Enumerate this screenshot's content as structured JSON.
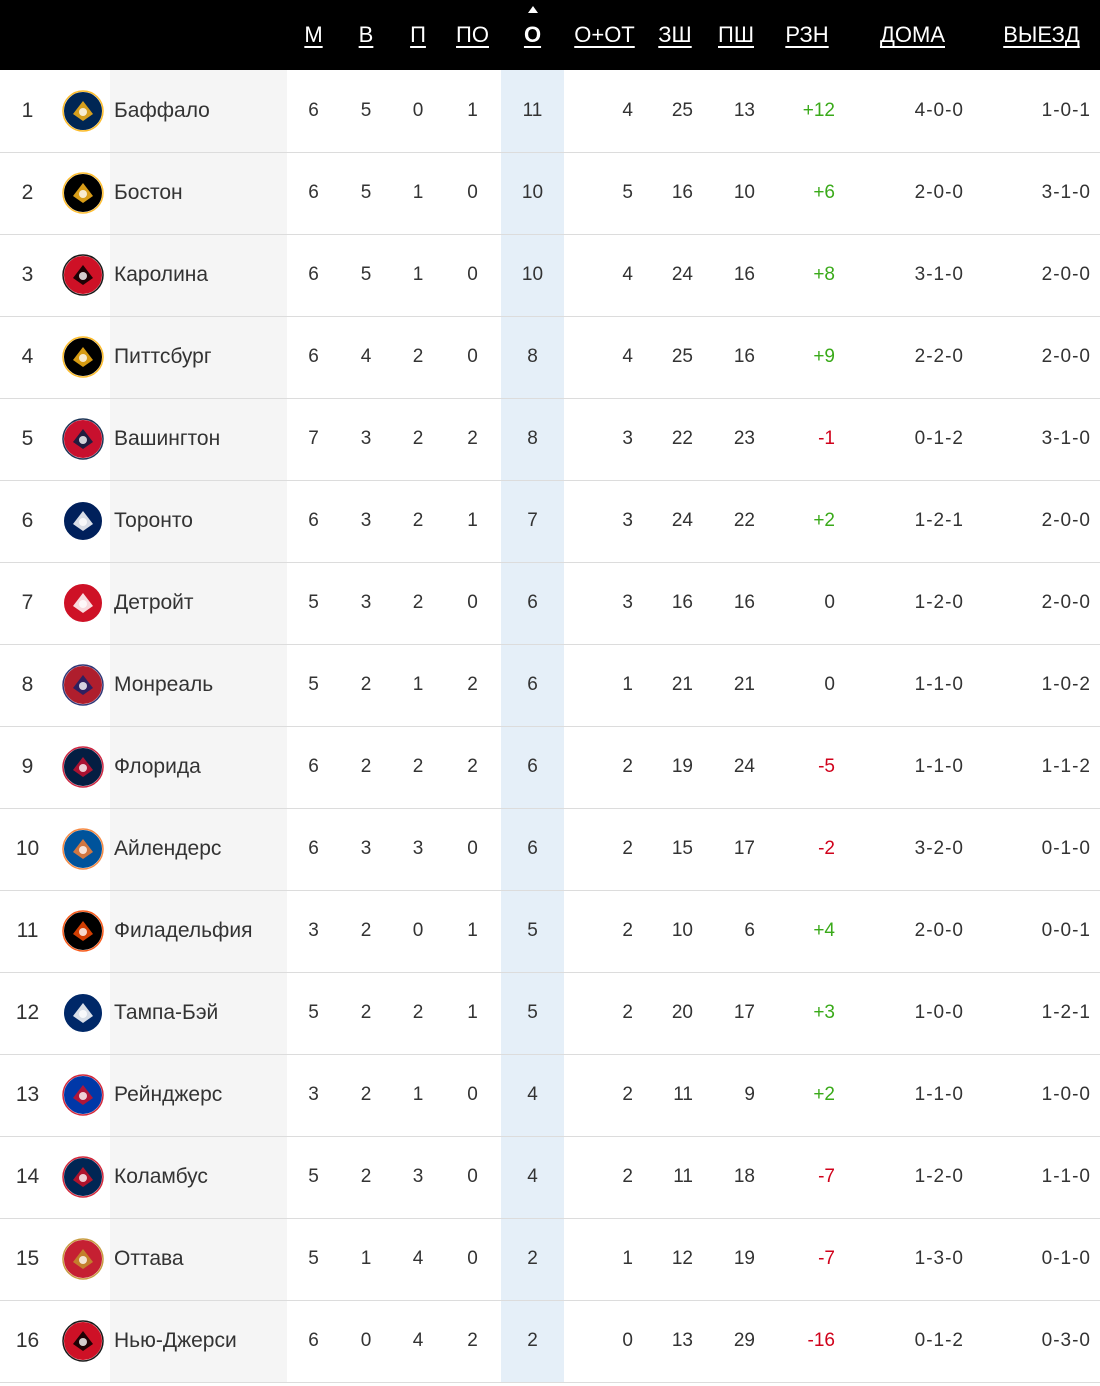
{
  "headers": {
    "gp": "М",
    "w": "В",
    "l": "П",
    "otl": "ПО",
    "pts": "О",
    "rowt": "О+ОТ",
    "gf": "ЗШ",
    "ga": "ПШ",
    "diff": "РЗН",
    "home": "ДОМА",
    "away": "ВЫЕЗД"
  },
  "teams": [
    {
      "rank": "1",
      "name": "Баффало",
      "logo": "buffalo-sabres-logo-icon",
      "color": "#002654",
      "accent": "#FCB514",
      "gp": "6",
      "w": "5",
      "l": "0",
      "otl": "1",
      "pts": "11",
      "rowt": "4",
      "gf": "25",
      "ga": "13",
      "diff": "+12",
      "home": "4-0-0",
      "away": "1-0-1"
    },
    {
      "rank": "2",
      "name": "Бостон",
      "logo": "boston-bruins-logo-icon",
      "color": "#000000",
      "accent": "#FFB81C",
      "gp": "6",
      "w": "5",
      "l": "1",
      "otl": "0",
      "pts": "10",
      "rowt": "5",
      "gf": "16",
      "ga": "10",
      "diff": "+6",
      "home": "2-0-0",
      "away": "3-1-0"
    },
    {
      "rank": "3",
      "name": "Каролина",
      "logo": "carolina-hurricanes-logo-icon",
      "color": "#CE1126",
      "accent": "#000000",
      "gp": "6",
      "w": "5",
      "l": "1",
      "otl": "0",
      "pts": "10",
      "rowt": "4",
      "gf": "24",
      "ga": "16",
      "diff": "+8",
      "home": "3-1-0",
      "away": "2-0-0"
    },
    {
      "rank": "4",
      "name": "Питтсбург",
      "logo": "pittsburgh-penguins-logo-icon",
      "color": "#000000",
      "accent": "#FCB514",
      "gp": "6",
      "w": "4",
      "l": "2",
      "otl": "0",
      "pts": "8",
      "rowt": "4",
      "gf": "25",
      "ga": "16",
      "diff": "+9",
      "home": "2-2-0",
      "away": "2-0-0"
    },
    {
      "rank": "5",
      "name": "Вашингтон",
      "logo": "washington-capitals-logo-icon",
      "color": "#C8102E",
      "accent": "#041E42",
      "gp": "7",
      "w": "3",
      "l": "2",
      "otl": "2",
      "pts": "8",
      "rowt": "3",
      "gf": "22",
      "ga": "23",
      "diff": "-1",
      "home": "0-1-2",
      "away": "3-1-0"
    },
    {
      "rank": "6",
      "name": "Торонто",
      "logo": "toronto-maple-leafs-logo-icon",
      "color": "#00205B",
      "accent": "#FFFFFF",
      "gp": "6",
      "w": "3",
      "l": "2",
      "otl": "1",
      "pts": "7",
      "rowt": "3",
      "gf": "24",
      "ga": "22",
      "diff": "+2",
      "home": "1-2-1",
      "away": "2-0-0"
    },
    {
      "rank": "7",
      "name": "Детройт",
      "logo": "detroit-red-wings-logo-icon",
      "color": "#CE1126",
      "accent": "#FFFFFF",
      "gp": "5",
      "w": "3",
      "l": "2",
      "otl": "0",
      "pts": "6",
      "rowt": "3",
      "gf": "16",
      "ga": "16",
      "diff": "0",
      "home": "1-2-0",
      "away": "2-0-0"
    },
    {
      "rank": "8",
      "name": "Монреаль",
      "logo": "montreal-canadiens-logo-icon",
      "color": "#AF1E2D",
      "accent": "#192168",
      "gp": "5",
      "w": "2",
      "l": "1",
      "otl": "2",
      "pts": "6",
      "rowt": "1",
      "gf": "21",
      "ga": "21",
      "diff": "0",
      "home": "1-1-0",
      "away": "1-0-2"
    },
    {
      "rank": "9",
      "name": "Флорида",
      "logo": "florida-panthers-logo-icon",
      "color": "#041E42",
      "accent": "#C8102E",
      "gp": "6",
      "w": "2",
      "l": "2",
      "otl": "2",
      "pts": "6",
      "rowt": "2",
      "gf": "19",
      "ga": "24",
      "diff": "-5",
      "home": "1-1-0",
      "away": "1-1-2"
    },
    {
      "rank": "10",
      "name": "Айлендерс",
      "logo": "new-york-islanders-logo-icon",
      "color": "#00539B",
      "accent": "#F47D30",
      "gp": "6",
      "w": "3",
      "l": "3",
      "otl": "0",
      "pts": "6",
      "rowt": "2",
      "gf": "15",
      "ga": "17",
      "diff": "-2",
      "home": "3-2-0",
      "away": "0-1-0"
    },
    {
      "rank": "11",
      "name": "Филадельфия",
      "logo": "philadelphia-flyers-logo-icon",
      "color": "#000000",
      "accent": "#F74902",
      "gp": "3",
      "w": "2",
      "l": "0",
      "otl": "1",
      "pts": "5",
      "rowt": "2",
      "gf": "10",
      "ga": "6",
      "diff": "+4",
      "home": "2-0-0",
      "away": "0-0-1"
    },
    {
      "rank": "12",
      "name": "Тампа-Бэй",
      "logo": "tampa-bay-lightning-logo-icon",
      "color": "#002868",
      "accent": "#FFFFFF",
      "gp": "5",
      "w": "2",
      "l": "2",
      "otl": "1",
      "pts": "5",
      "rowt": "2",
      "gf": "20",
      "ga": "17",
      "diff": "+3",
      "home": "1-0-0",
      "away": "1-2-1"
    },
    {
      "rank": "13",
      "name": "Рейнджерс",
      "logo": "new-york-rangers-logo-icon",
      "color": "#0038A8",
      "accent": "#CE1126",
      "gp": "3",
      "w": "2",
      "l": "1",
      "otl": "0",
      "pts": "4",
      "rowt": "2",
      "gf": "11",
      "ga": "9",
      "diff": "+2",
      "home": "1-1-0",
      "away": "1-0-0"
    },
    {
      "rank": "14",
      "name": "Коламбус",
      "logo": "columbus-blue-jackets-logo-icon",
      "color": "#002654",
      "accent": "#CE1126",
      "gp": "5",
      "w": "2",
      "l": "3",
      "otl": "0",
      "pts": "4",
      "rowt": "2",
      "gf": "11",
      "ga": "18",
      "diff": "-7",
      "home": "1-2-0",
      "away": "1-1-0"
    },
    {
      "rank": "15",
      "name": "Оттава",
      "logo": "ottawa-senators-logo-icon",
      "color": "#C52032",
      "accent": "#C2912C",
      "gp": "5",
      "w": "1",
      "l": "4",
      "otl": "0",
      "pts": "2",
      "rowt": "1",
      "gf": "12",
      "ga": "19",
      "diff": "-7",
      "home": "1-3-0",
      "away": "0-1-0"
    },
    {
      "rank": "16",
      "name": "Нью-Джерси",
      "logo": "new-jersey-devils-logo-icon",
      "color": "#CE1126",
      "accent": "#000000",
      "gp": "6",
      "w": "0",
      "l": "4",
      "otl": "2",
      "pts": "2",
      "rowt": "0",
      "gf": "13",
      "ga": "29",
      "diff": "-16",
      "home": "0-1-2",
      "away": "0-3-0"
    }
  ]
}
